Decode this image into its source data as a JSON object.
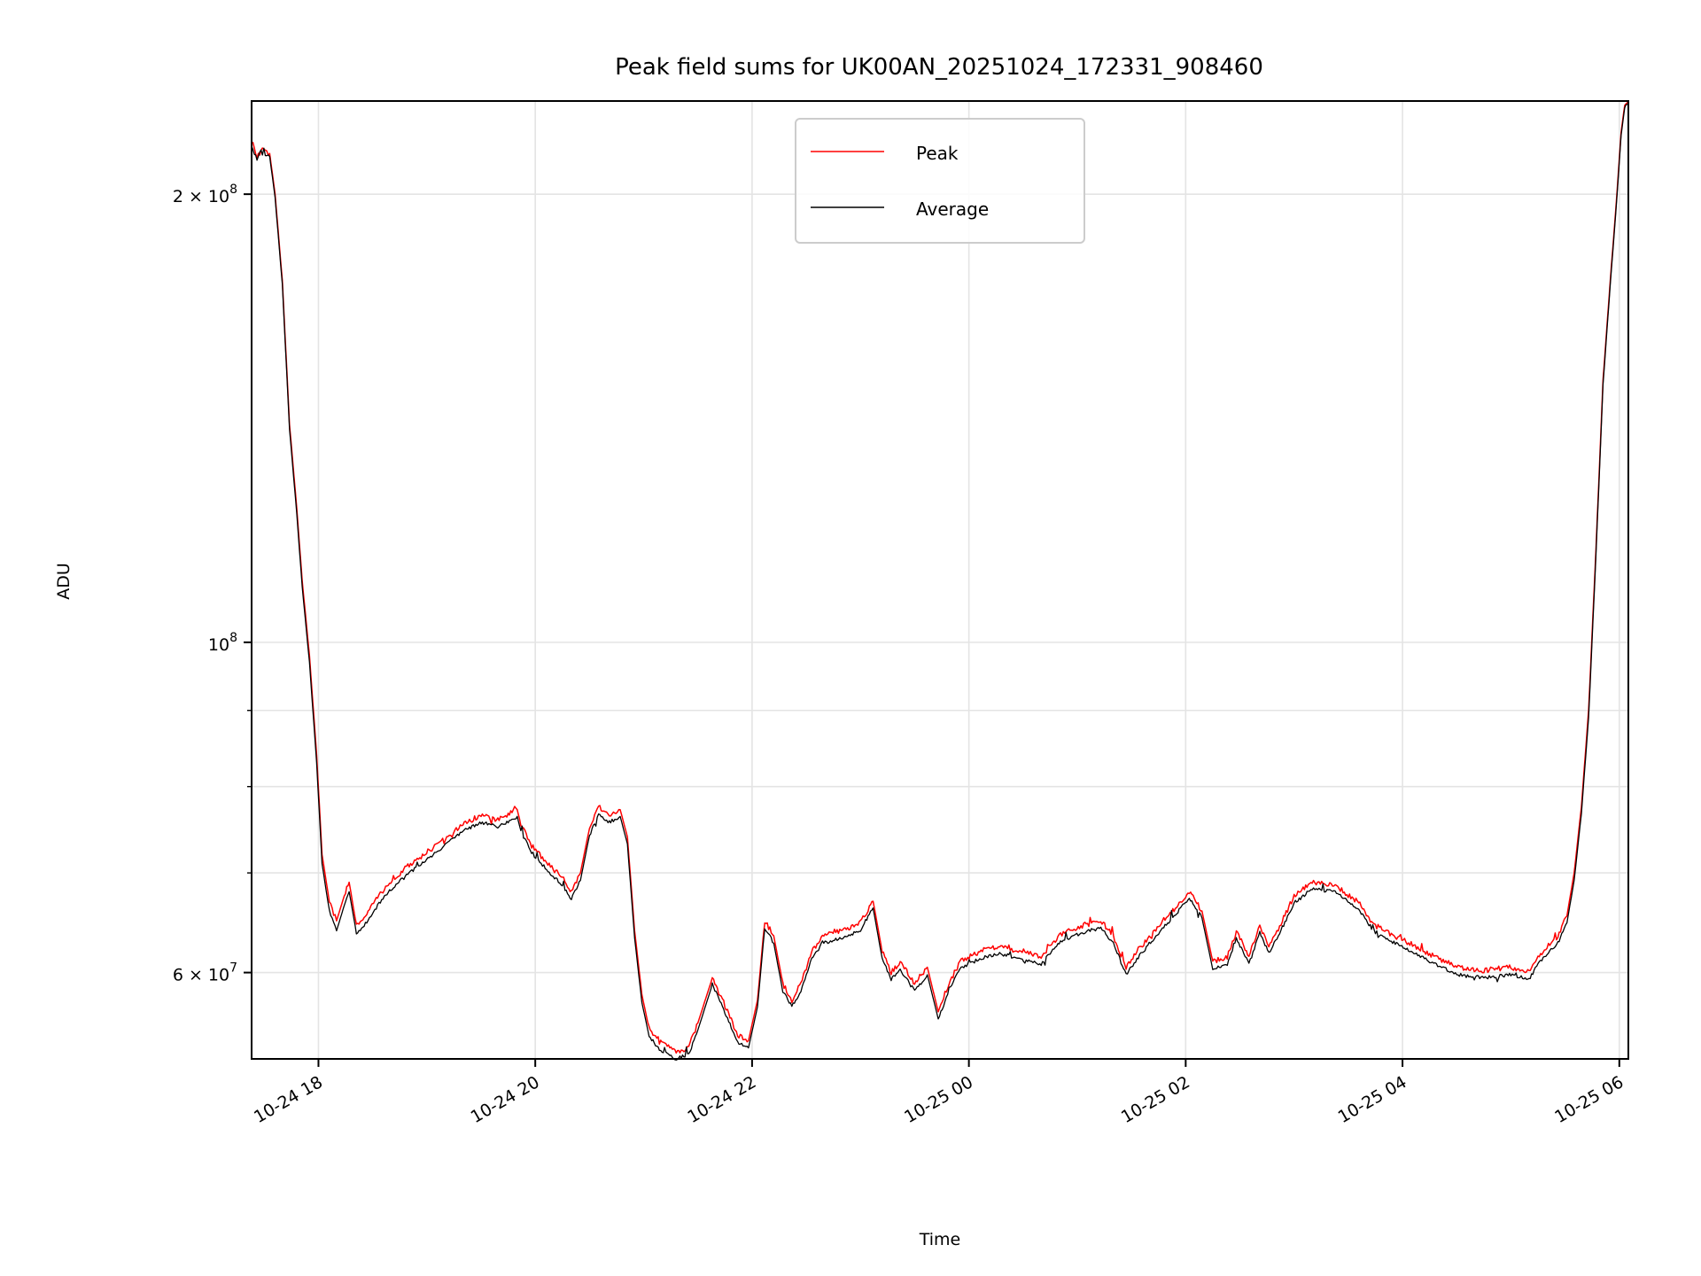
{
  "chart_data": {
    "type": "line",
    "title": "Peak field sums for UK00AN_20251024_172331_908460",
    "xlabel": "Time",
    "ylabel": "ADU",
    "y_scale": "log",
    "grid": true,
    "legend_position": "top-center",
    "x_range": [
      "2025-10-24 17:23",
      "2025-10-25 06:05"
    ],
    "ylim": [
      52500000,
      231000000
    ],
    "x_ticks": [
      {
        "value": "2025-10-24 18:00",
        "label": "10-24 18"
      },
      {
        "value": "2025-10-24 20:00",
        "label": "10-24 20"
      },
      {
        "value": "2025-10-24 22:00",
        "label": "10-24 22"
      },
      {
        "value": "2025-10-25 00:00",
        "label": "10-25 00"
      },
      {
        "value": "2025-10-25 02:00",
        "label": "10-25 02"
      },
      {
        "value": "2025-10-25 04:00",
        "label": "10-25 04"
      },
      {
        "value": "2025-10-25 06:00",
        "label": "10-25 06"
      }
    ],
    "y_major_ticks": [
      {
        "value": 200000000,
        "label_base": "2 × 10",
        "label_exp": "8"
      },
      {
        "value": 100000000,
        "label_base": "10",
        "label_exp": "8"
      },
      {
        "value": 60000000,
        "label_base": "6 × 10",
        "label_exp": "7"
      }
    ],
    "y_minor_ticks": [
      90000000,
      80000000,
      70000000
    ],
    "series": [
      {
        "name": "Peak",
        "color": "#ff0000",
        "points": [
          [
            "2025-10-24 17:23",
            216000000
          ],
          [
            "2025-10-24 17:26",
            212000000
          ],
          [
            "2025-10-24 17:29",
            214000000
          ],
          [
            "2025-10-24 17:33",
            213000000
          ],
          [
            "2025-10-24 17:36",
            200000000
          ],
          [
            "2025-10-24 17:40",
            175000000
          ],
          [
            "2025-10-24 17:44",
            140000000
          ],
          [
            "2025-10-24 17:48",
            123000000
          ],
          [
            "2025-10-24 17:51",
            110000000
          ],
          [
            "2025-10-24 17:55",
            98000000
          ],
          [
            "2025-10-24 17:59",
            84000000
          ],
          [
            "2025-10-24 18:02",
            72000000
          ],
          [
            "2025-10-24 18:06",
            67000000
          ],
          [
            "2025-10-24 18:10",
            65000000
          ],
          [
            "2025-10-24 18:15",
            68000000
          ],
          [
            "2025-10-24 18:17",
            69000000
          ],
          [
            "2025-10-24 18:21",
            64500000
          ],
          [
            "2025-10-24 18:26",
            65500000
          ],
          [
            "2025-10-24 18:35",
            68000000
          ],
          [
            "2025-10-24 18:48",
            70500000
          ],
          [
            "2025-10-24 19:05",
            73000000
          ],
          [
            "2025-10-24 19:20",
            75500000
          ],
          [
            "2025-10-24 19:30",
            76500000
          ],
          [
            "2025-10-24 19:40",
            76000000
          ],
          [
            "2025-10-24 19:50",
            77200000
          ],
          [
            "2025-10-24 19:52",
            75500000
          ],
          [
            "2025-10-24 19:58",
            73000000
          ],
          [
            "2025-10-24 20:07",
            71000000
          ],
          [
            "2025-10-24 20:15",
            69500000
          ],
          [
            "2025-10-24 20:20",
            68000000
          ],
          [
            "2025-10-24 20:25",
            70000000
          ],
          [
            "2025-10-24 20:30",
            75000000
          ],
          [
            "2025-10-24 20:35",
            77500000
          ],
          [
            "2025-10-24 20:41",
            76500000
          ],
          [
            "2025-10-24 20:47",
            77200000
          ],
          [
            "2025-10-24 20:51",
            74000000
          ],
          [
            "2025-10-24 20:55",
            64000000
          ],
          [
            "2025-10-24 20:59",
            58000000
          ],
          [
            "2025-10-24 21:03",
            55000000
          ],
          [
            "2025-10-24 21:08",
            54000000
          ],
          [
            "2025-10-24 21:13",
            53500000
          ],
          [
            "2025-10-24 21:18",
            53000000
          ],
          [
            "2025-10-24 21:25",
            53500000
          ],
          [
            "2025-10-24 21:30",
            55500000
          ],
          [
            "2025-10-24 21:38",
            59500000
          ],
          [
            "2025-10-24 21:45",
            57000000
          ],
          [
            "2025-10-24 21:52",
            54500000
          ],
          [
            "2025-10-24 21:58",
            54000000
          ],
          [
            "2025-10-24 22:03",
            57500000
          ],
          [
            "2025-10-24 22:07",
            65000000
          ],
          [
            "2025-10-24 22:12",
            63500000
          ],
          [
            "2025-10-24 22:17",
            59000000
          ],
          [
            "2025-10-24 22:22",
            57500000
          ],
          [
            "2025-10-24 22:27",
            59000000
          ],
          [
            "2025-10-24 22:33",
            62000000
          ],
          [
            "2025-10-24 22:39",
            63500000
          ],
          [
            "2025-10-24 22:50",
            64000000
          ],
          [
            "2025-10-24 23:00",
            64800000
          ],
          [
            "2025-10-24 23:07",
            67000000
          ],
          [
            "2025-10-24 23:12",
            62000000
          ],
          [
            "2025-10-24 23:17",
            60000000
          ],
          [
            "2025-10-24 23:22",
            61000000
          ],
          [
            "2025-10-24 23:30",
            59000000
          ],
          [
            "2025-10-24 23:37",
            60500000
          ],
          [
            "2025-10-24 23:43",
            56500000
          ],
          [
            "2025-10-24 23:49",
            59000000
          ],
          [
            "2025-10-24 23:55",
            61000000
          ],
          [
            "2025-10-25 00:06",
            62000000
          ],
          [
            "2025-10-25 00:17",
            62500000
          ],
          [
            "2025-10-25 00:28",
            62000000
          ],
          [
            "2025-10-25 00:40",
            61500000
          ],
          [
            "2025-10-25 00:50",
            63500000
          ],
          [
            "2025-10-25 01:02",
            64500000
          ],
          [
            "2025-10-25 01:13",
            65000000
          ],
          [
            "2025-10-25 01:20",
            63500000
          ],
          [
            "2025-10-25 01:27",
            60500000
          ],
          [
            "2025-10-25 01:33",
            62000000
          ],
          [
            "2025-10-25 01:45",
            64500000
          ],
          [
            "2025-10-25 01:55",
            66500000
          ],
          [
            "2025-10-25 02:02",
            68000000
          ],
          [
            "2025-10-25 02:09",
            66000000
          ],
          [
            "2025-10-25 02:15",
            61000000
          ],
          [
            "2025-10-25 02:23",
            61500000
          ],
          [
            "2025-10-25 02:28",
            64000000
          ],
          [
            "2025-10-25 02:35",
            61500000
          ],
          [
            "2025-10-25 02:41",
            64500000
          ],
          [
            "2025-10-25 02:46",
            62500000
          ],
          [
            "2025-10-25 02:52",
            64500000
          ],
          [
            "2025-10-25 03:00",
            67500000
          ],
          [
            "2025-10-25 03:10",
            69000000
          ],
          [
            "2025-10-25 03:22",
            68700000
          ],
          [
            "2025-10-25 03:35",
            67000000
          ],
          [
            "2025-10-25 03:45",
            64500000
          ],
          [
            "2025-10-25 03:56",
            63500000
          ],
          [
            "2025-10-25 04:07",
            62500000
          ],
          [
            "2025-10-25 04:18",
            61500000
          ],
          [
            "2025-10-25 04:30",
            60500000
          ],
          [
            "2025-10-25 04:45",
            60200000
          ],
          [
            "2025-10-25 05:00",
            60500000
          ],
          [
            "2025-10-25 05:10",
            60000000
          ],
          [
            "2025-10-25 05:15",
            61500000
          ],
          [
            "2025-10-25 05:20",
            62500000
          ],
          [
            "2025-10-25 05:26",
            63500000
          ],
          [
            "2025-10-25 05:31",
            65500000
          ],
          [
            "2025-10-25 05:35",
            70000000
          ],
          [
            "2025-10-25 05:39",
            77500000
          ],
          [
            "2025-10-25 05:43",
            90000000
          ],
          [
            "2025-10-25 05:47",
            115000000
          ],
          [
            "2025-10-25 05:51",
            150000000
          ],
          [
            "2025-10-25 05:55",
            175000000
          ],
          [
            "2025-10-25 05:58",
            195000000
          ],
          [
            "2025-10-25 06:01",
            220000000
          ],
          [
            "2025-10-25 06:03",
            230000000
          ],
          [
            "2025-10-25 06:05",
            231000000
          ]
        ]
      },
      {
        "name": "Average",
        "color": "#000000",
        "points": [
          [
            "2025-10-24 17:23",
            215000000
          ],
          [
            "2025-10-24 17:26",
            211000000
          ],
          [
            "2025-10-24 17:29",
            213000000
          ],
          [
            "2025-10-24 17:33",
            212000000
          ],
          [
            "2025-10-24 17:36",
            199000000
          ],
          [
            "2025-10-24 17:40",
            174000000
          ],
          [
            "2025-10-24 17:44",
            139000000
          ],
          [
            "2025-10-24 17:48",
            122000000
          ],
          [
            "2025-10-24 17:51",
            109000000
          ],
          [
            "2025-10-24 17:55",
            97000000
          ],
          [
            "2025-10-24 17:59",
            83000000
          ],
          [
            "2025-10-24 18:02",
            71000000
          ],
          [
            "2025-10-24 18:06",
            66000000
          ],
          [
            "2025-10-24 18:10",
            64000000
          ],
          [
            "2025-10-24 18:15",
            67000000
          ],
          [
            "2025-10-24 18:17",
            68000000
          ],
          [
            "2025-10-24 18:21",
            63800000
          ],
          [
            "2025-10-24 18:26",
            64700000
          ],
          [
            "2025-10-24 18:35",
            67200000
          ],
          [
            "2025-10-24 18:48",
            69700000
          ],
          [
            "2025-10-24 19:05",
            72200000
          ],
          [
            "2025-10-24 19:20",
            74700000
          ],
          [
            "2025-10-24 19:30",
            75700000
          ],
          [
            "2025-10-24 19:40",
            75200000
          ],
          [
            "2025-10-24 19:50",
            76400000
          ],
          [
            "2025-10-24 19:52",
            74700000
          ],
          [
            "2025-10-24 19:58",
            72200000
          ],
          [
            "2025-10-24 20:07",
            70200000
          ],
          [
            "2025-10-24 20:15",
            68700000
          ],
          [
            "2025-10-24 20:20",
            67200000
          ],
          [
            "2025-10-24 20:25",
            69200000
          ],
          [
            "2025-10-24 20:30",
            74200000
          ],
          [
            "2025-10-24 20:35",
            76700000
          ],
          [
            "2025-10-24 20:41",
            75700000
          ],
          [
            "2025-10-24 20:47",
            76400000
          ],
          [
            "2025-10-24 20:51",
            73200000
          ],
          [
            "2025-10-24 20:55",
            63300000
          ],
          [
            "2025-10-24 20:59",
            57300000
          ],
          [
            "2025-10-24 21:03",
            54400000
          ],
          [
            "2025-10-24 21:08",
            53400000
          ],
          [
            "2025-10-24 21:13",
            52900000
          ],
          [
            "2025-10-24 21:18",
            52500000
          ],
          [
            "2025-10-24 21:25",
            52900000
          ],
          [
            "2025-10-24 21:30",
            54900000
          ],
          [
            "2025-10-24 21:38",
            58900000
          ],
          [
            "2025-10-24 21:45",
            56400000
          ],
          [
            "2025-10-24 21:52",
            53900000
          ],
          [
            "2025-10-24 21:58",
            53400000
          ],
          [
            "2025-10-24 22:03",
            56900000
          ],
          [
            "2025-10-24 22:07",
            64300000
          ],
          [
            "2025-10-24 22:12",
            62800000
          ],
          [
            "2025-10-24 22:17",
            58300000
          ],
          [
            "2025-10-24 22:22",
            56900000
          ],
          [
            "2025-10-24 22:27",
            58300000
          ],
          [
            "2025-10-24 22:33",
            61300000
          ],
          [
            "2025-10-24 22:39",
            62800000
          ],
          [
            "2025-10-24 22:50",
            63300000
          ],
          [
            "2025-10-24 23:00",
            64100000
          ],
          [
            "2025-10-24 23:07",
            66300000
          ],
          [
            "2025-10-24 23:12",
            61300000
          ],
          [
            "2025-10-24 23:17",
            59400000
          ],
          [
            "2025-10-24 23:22",
            60300000
          ],
          [
            "2025-10-24 23:30",
            58300000
          ],
          [
            "2025-10-24 23:37",
            59800000
          ],
          [
            "2025-10-24 23:43",
            55900000
          ],
          [
            "2025-10-24 23:49",
            58300000
          ],
          [
            "2025-10-24 23:55",
            60300000
          ],
          [
            "2025-10-25 00:06",
            61300000
          ],
          [
            "2025-10-25 00:17",
            61800000
          ],
          [
            "2025-10-25 00:28",
            61300000
          ],
          [
            "2025-10-25 00:40",
            60800000
          ],
          [
            "2025-10-25 00:50",
            62800000
          ],
          [
            "2025-10-25 01:02",
            63800000
          ],
          [
            "2025-10-25 01:13",
            64300000
          ],
          [
            "2025-10-25 01:20",
            62800000
          ],
          [
            "2025-10-25 01:27",
            59800000
          ],
          [
            "2025-10-25 01:33",
            61300000
          ],
          [
            "2025-10-25 01:45",
            63800000
          ],
          [
            "2025-10-25 01:55",
            65800000
          ],
          [
            "2025-10-25 02:02",
            67300000
          ],
          [
            "2025-10-25 02:09",
            65300000
          ],
          [
            "2025-10-25 02:15",
            60300000
          ],
          [
            "2025-10-25 02:23",
            60800000
          ],
          [
            "2025-10-25 02:28",
            63300000
          ],
          [
            "2025-10-25 02:35",
            60800000
          ],
          [
            "2025-10-25 02:41",
            63800000
          ],
          [
            "2025-10-25 02:46",
            61800000
          ],
          [
            "2025-10-25 02:52",
            63800000
          ],
          [
            "2025-10-25 03:00",
            66800000
          ],
          [
            "2025-10-25 03:10",
            68300000
          ],
          [
            "2025-10-25 03:22",
            68000000
          ],
          [
            "2025-10-25 03:35",
            66300000
          ],
          [
            "2025-10-25 03:45",
            63800000
          ],
          [
            "2025-10-25 03:56",
            62800000
          ],
          [
            "2025-10-25 04:07",
            61800000
          ],
          [
            "2025-10-25 04:18",
            60800000
          ],
          [
            "2025-10-25 04:30",
            59800000
          ],
          [
            "2025-10-25 04:45",
            59500000
          ],
          [
            "2025-10-25 05:00",
            59800000
          ],
          [
            "2025-10-25 05:10",
            59400000
          ],
          [
            "2025-10-25 05:15",
            60800000
          ],
          [
            "2025-10-25 05:20",
            61800000
          ],
          [
            "2025-10-25 05:26",
            62800000
          ],
          [
            "2025-10-25 05:31",
            64800000
          ],
          [
            "2025-10-25 05:35",
            69200000
          ],
          [
            "2025-10-25 05:39",
            76700000
          ],
          [
            "2025-10-25 05:43",
            89000000
          ],
          [
            "2025-10-25 05:47",
            114000000
          ],
          [
            "2025-10-25 05:51",
            149000000
          ],
          [
            "2025-10-25 05:55",
            174000000
          ],
          [
            "2025-10-25 05:58",
            194000000
          ],
          [
            "2025-10-25 06:01",
            219000000
          ],
          [
            "2025-10-25 06:03",
            229000000
          ],
          [
            "2025-10-25 06:05",
            230000000
          ]
        ]
      }
    ]
  }
}
